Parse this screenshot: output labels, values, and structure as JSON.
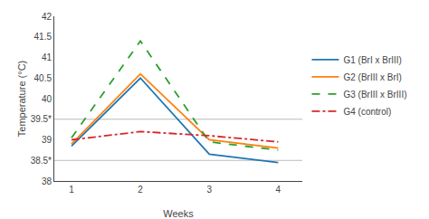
{
  "chart_data": {
    "type": "line",
    "x": [
      1,
      2,
      3,
      4
    ],
    "series": [
      {
        "name": "G1 (BrI x BrIII)",
        "values": [
          38.85,
          40.5,
          38.65,
          38.45
        ],
        "line_style": "solid"
      },
      {
        "name": "G2 (BrIII x BrI)",
        "values": [
          38.9,
          40.6,
          39.0,
          38.8
        ],
        "line_style": "solid"
      },
      {
        "name": "G3 (BrIII x BrIII)",
        "values": [
          39.05,
          41.4,
          38.95,
          38.75
        ],
        "line_style": "dash"
      },
      {
        "name": "G4 (control)",
        "values": [
          39.0,
          39.2,
          39.1,
          38.95
        ],
        "line_style": "dashdot"
      }
    ],
    "hlines": [
      39.5,
      38.5
    ],
    "xlabel": "Weeks",
    "ylabel": "Temperature (°C)",
    "xlim": [
      0.75,
      4.35
    ],
    "xticks": [
      1,
      2,
      3,
      4
    ],
    "ylim": [
      38.0,
      42.0
    ],
    "yticks": [
      38,
      {
        "value": 38.5,
        "label": "38.5*"
      },
      39,
      {
        "value": 39.5,
        "label": "39.5*"
      },
      40,
      40.5,
      41,
      41.5,
      42
    ],
    "grid": false,
    "legend": "right"
  }
}
